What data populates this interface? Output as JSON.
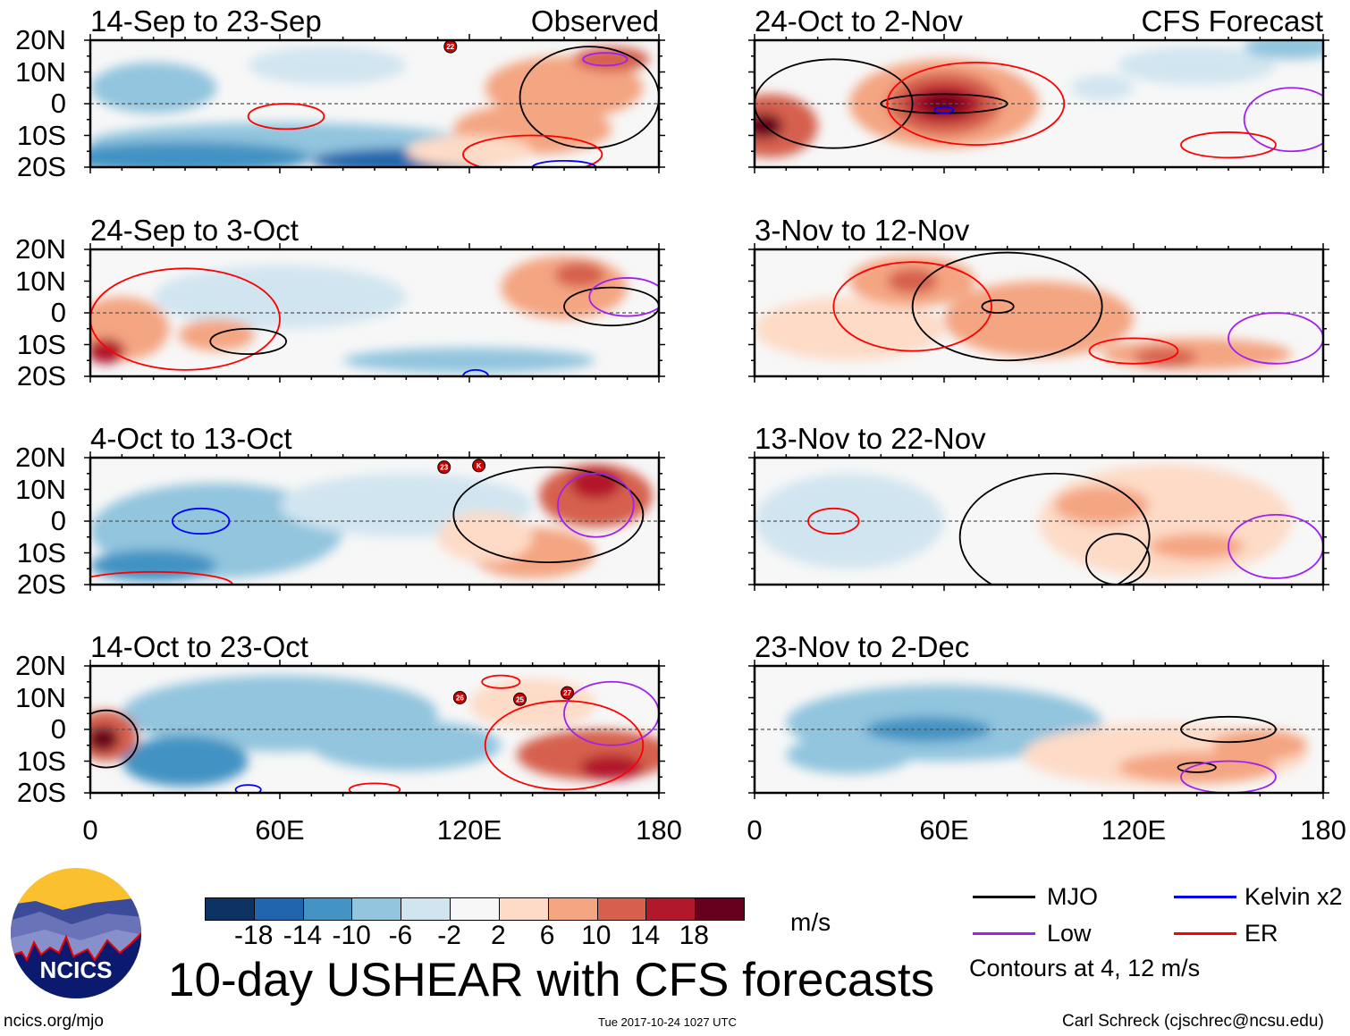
{
  "figure": {
    "title": "10-day USHEAR with CFS forecasts",
    "units": "m/s",
    "site": "ncics.org/mjo",
    "timestamp": "Tue 2017-10-24 1027 UTC",
    "author": "Carl Schreck (cjschrec@ncsu.edu)",
    "logo_text": "NCICS",
    "observed_label": "Observed",
    "forecast_label": "CFS Forecast",
    "contour_note": "Contours at 4, 12 m/s"
  },
  "legend": [
    {
      "label": "MJO",
      "color": "#000000"
    },
    {
      "label": "Kelvin x2",
      "color": "#0000ff"
    },
    {
      "label": "Low",
      "color": "#a020f0"
    },
    {
      "label": "ER",
      "color": "#ff0000"
    }
  ],
  "chart_data": {
    "type": "heatmap",
    "xlim": [
      0,
      180
    ],
    "ylim": [
      -20,
      20
    ],
    "x_ticks": [
      "0",
      "60E",
      "120E",
      "180"
    ],
    "x_tick_values": [
      0,
      60,
      120,
      180
    ],
    "y_ticks": [
      "20N",
      "10N",
      "0",
      "10S",
      "20S"
    ],
    "y_tick_values": [
      20,
      10,
      0,
      -10,
      -20
    ],
    "colorbar": {
      "levels": [
        "-18",
        "-14",
        "-10",
        "-6",
        "-2",
        "2",
        "6",
        "10",
        "14",
        "18"
      ],
      "colors": [
        "#0d3364",
        "#2166ac",
        "#4393c3",
        "#92c5de",
        "#d1e5f0",
        "#f7f7f7",
        "#fddbc7",
        "#f4a582",
        "#d6604d",
        "#b2182b",
        "#67001f"
      ]
    },
    "panels": [
      {
        "title": "14-Sep to 23-Sep",
        "column": "observed",
        "shading": [
          [
            60,
            -12,
            60,
            6,
            -6
          ],
          [
            30,
            -17,
            40,
            5,
            -10
          ],
          [
            100,
            -18,
            30,
            4,
            -14
          ],
          [
            20,
            5,
            20,
            8,
            -6
          ],
          [
            75,
            12,
            25,
            6,
            -2
          ],
          [
            150,
            5,
            25,
            10,
            6
          ],
          [
            165,
            14,
            12,
            4,
            10
          ],
          [
            140,
            -8,
            25,
            8,
            6
          ],
          [
            120,
            -15,
            20,
            5,
            2
          ]
        ],
        "contours": [
          [
            "ER",
            62,
            -4,
            12,
            4
          ],
          [
            "MJO",
            158,
            2,
            22,
            16
          ],
          [
            "ER",
            140,
            -16,
            22,
            6
          ],
          [
            "Low",
            163,
            14,
            7,
            2
          ],
          [
            "Kelvin x2",
            150,
            -20,
            10,
            2
          ]
        ],
        "storms": [
          {
            "label": "22",
            "lon": 114,
            "lat": 18
          }
        ]
      },
      {
        "title": "24-Sep to 3-Oct",
        "column": "observed",
        "shading": [
          [
            60,
            5,
            40,
            10,
            -2
          ],
          [
            120,
            -15,
            40,
            4,
            -6
          ],
          [
            10,
            -5,
            15,
            10,
            6
          ],
          [
            5,
            -12,
            6,
            4,
            14
          ],
          [
            40,
            -7,
            12,
            5,
            6
          ],
          [
            150,
            8,
            20,
            10,
            6
          ],
          [
            155,
            12,
            8,
            4,
            10
          ]
        ],
        "contours": [
          [
            "ER",
            30,
            -2,
            30,
            16
          ],
          [
            "MJO",
            165,
            2,
            15,
            6
          ],
          [
            "MJO",
            50,
            -9,
            12,
            4
          ],
          [
            "Low",
            170,
            5,
            12,
            6
          ],
          [
            "Kelvin x2",
            122,
            -20,
            4,
            2
          ]
        ],
        "storms": []
      },
      {
        "title": "4-Oct to 13-Oct",
        "column": "observed",
        "shading": [
          [
            40,
            -3,
            40,
            15,
            -6
          ],
          [
            100,
            5,
            40,
            10,
            -2
          ],
          [
            20,
            -14,
            20,
            5,
            -10
          ],
          [
            160,
            8,
            18,
            10,
            10
          ],
          [
            160,
            12,
            8,
            5,
            14
          ],
          [
            140,
            -10,
            20,
            8,
            6
          ],
          [
            125,
            -5,
            15,
            8,
            2
          ]
        ],
        "contours": [
          [
            "Kelvin x2",
            35,
            0,
            9,
            4
          ],
          [
            "MJO",
            145,
            2,
            30,
            15
          ],
          [
            "Low",
            160,
            5,
            12,
            10
          ],
          [
            "ER",
            20,
            -20,
            25,
            4
          ]
        ],
        "storms": [
          {
            "label": "23",
            "lon": 112,
            "lat": 17
          },
          {
            "label": "K",
            "lon": 123,
            "lat": 17.5
          }
        ]
      },
      {
        "title": "14-Oct to 23-Oct",
        "column": "observed",
        "shading": [
          [
            60,
            5,
            50,
            12,
            -6
          ],
          [
            100,
            -5,
            30,
            8,
            -6
          ],
          [
            30,
            -10,
            20,
            8,
            -10
          ],
          [
            140,
            8,
            20,
            8,
            2
          ],
          [
            5,
            -2,
            10,
            8,
            10
          ],
          [
            4,
            -3,
            5,
            4,
            18
          ],
          [
            160,
            -8,
            25,
            8,
            10
          ],
          [
            165,
            -12,
            10,
            4,
            14
          ]
        ],
        "contours": [
          [
            "ER",
            150,
            -5,
            25,
            14
          ],
          [
            "Low",
            165,
            5,
            15,
            10
          ],
          [
            "MJO",
            5,
            -3,
            10,
            9
          ],
          [
            "ER",
            130,
            15,
            6,
            2
          ],
          [
            "ER",
            90,
            -19,
            8,
            2
          ],
          [
            "Kelvin x2",
            50,
            -19,
            4,
            1.5
          ]
        ],
        "storms": [
          {
            "label": "26",
            "lon": 117,
            "lat": 10
          },
          {
            "label": "25",
            "lon": 136,
            "lat": 9.5
          },
          {
            "label": "27",
            "lon": 151,
            "lat": 11.5
          }
        ]
      },
      {
        "title": "24-Oct to 2-Nov",
        "column": "forecast",
        "shading": [
          [
            140,
            12,
            25,
            6,
            -2
          ],
          [
            170,
            18,
            15,
            4,
            -6
          ],
          [
            110,
            5,
            10,
            4,
            -2
          ],
          [
            60,
            0,
            30,
            14,
            6
          ],
          [
            60,
            0,
            18,
            10,
            10
          ],
          [
            60,
            0,
            12,
            6,
            14
          ],
          [
            60,
            0,
            7,
            3,
            18
          ],
          [
            5,
            -7,
            15,
            10,
            10
          ],
          [
            3,
            -7,
            6,
            4,
            18
          ]
        ],
        "contours": [
          [
            "MJO",
            60,
            0,
            20,
            3
          ],
          [
            "MJO",
            25,
            0,
            25,
            14
          ],
          [
            "ER",
            70,
            0,
            28,
            13
          ],
          [
            "Low",
            170,
            -5,
            15,
            10
          ],
          [
            "ER",
            150,
            -13,
            15,
            4
          ],
          [
            "Kelvin x2",
            60,
            -2,
            3,
            1
          ]
        ],
        "storms": []
      },
      {
        "title": "3-Nov to 12-Nov",
        "column": "forecast",
        "shading": [
          [
            30,
            -5,
            30,
            10,
            2
          ],
          [
            90,
            -2,
            30,
            12,
            6
          ],
          [
            50,
            10,
            20,
            8,
            6
          ],
          [
            50,
            10,
            8,
            4,
            10
          ],
          [
            140,
            -13,
            30,
            5,
            6
          ],
          [
            130,
            -14,
            10,
            3,
            10
          ]
        ],
        "contours": [
          [
            "MJO",
            80,
            2,
            30,
            17
          ],
          [
            "ER",
            50,
            2,
            25,
            14
          ],
          [
            "Low",
            165,
            -8,
            15,
            8
          ],
          [
            "MJO",
            77,
            2,
            5,
            2
          ],
          [
            "ER",
            120,
            -12,
            14,
            4
          ]
        ],
        "storms": []
      },
      {
        "title": "13-Nov to 22-Nov",
        "column": "forecast",
        "shading": [
          [
            30,
            0,
            30,
            15,
            -2
          ],
          [
            130,
            0,
            40,
            18,
            2
          ],
          [
            110,
            5,
            15,
            6,
            6
          ],
          [
            140,
            -8,
            15,
            4,
            6
          ]
        ],
        "contours": [
          [
            "MJO",
            95,
            -5,
            30,
            20
          ],
          [
            "ER",
            25,
            0,
            8,
            4
          ],
          [
            "Low",
            165,
            -8,
            15,
            10
          ],
          [
            "MJO",
            115,
            -12,
            10,
            8
          ]
        ],
        "storms": []
      },
      {
        "title": "23-Nov to 2-Dec",
        "column": "forecast",
        "shading": [
          [
            60,
            2,
            50,
            12,
            -6
          ],
          [
            30,
            -8,
            20,
            6,
            -6
          ],
          [
            55,
            0,
            20,
            4,
            -10
          ],
          [
            130,
            -8,
            45,
            10,
            2
          ],
          [
            140,
            -12,
            25,
            5,
            6
          ],
          [
            160,
            -5,
            15,
            5,
            6
          ]
        ],
        "contours": [
          [
            "MJO",
            150,
            0,
            15,
            4
          ],
          [
            "MJO",
            140,
            -12,
            6,
            1.5
          ],
          [
            "Low",
            150,
            -15,
            15,
            5
          ]
        ],
        "storms": []
      }
    ]
  }
}
